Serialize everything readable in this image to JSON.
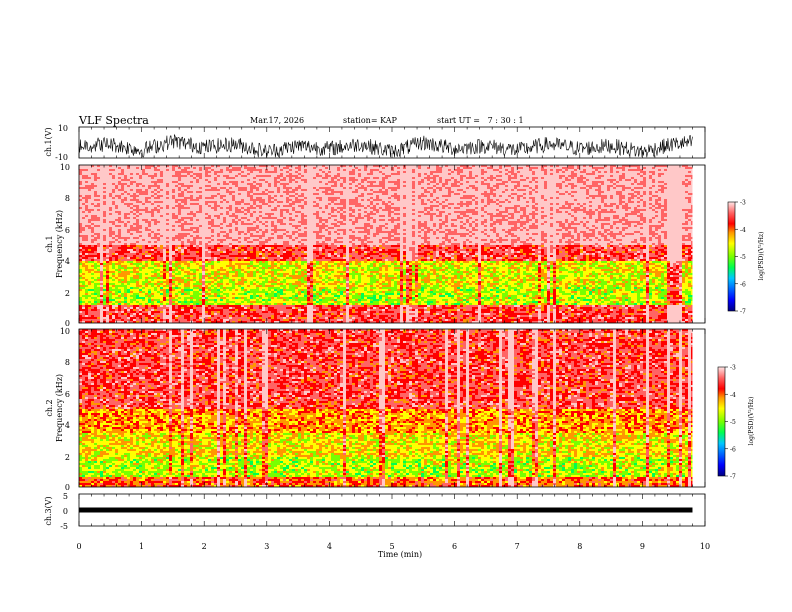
{
  "header": {
    "title": "VLF Spectra",
    "date": "Mar.17, 2026",
    "station": "station= KAP",
    "start_ut": "start UT =   7 : 30 : 1"
  },
  "colors": {
    "scale_stops": [
      "#0000b4",
      "#0000ff",
      "#00c8ff",
      "#00ff50",
      "#78ff00",
      "#ffff00",
      "#ff9600",
      "#ff0000",
      "#ff6464",
      "#ffc8c8"
    ]
  },
  "chart_data": [
    {
      "type": "line",
      "panel": "ch.1 waveform",
      "ylabel": "ch.1(V)",
      "ylim": [
        -10,
        10
      ],
      "yticks": [
        "10",
        "-10"
      ],
      "xlim": [
        0,
        10
      ],
      "x": [
        0,
        0.5,
        1,
        1.5,
        2,
        2.5,
        3,
        3.5,
        4,
        4.5,
        5,
        5.5,
        6,
        6.5,
        7,
        7.5,
        8,
        8.5,
        9,
        9.5,
        9.8
      ],
      "y": [
        -2,
        -1,
        -5,
        1,
        -3,
        -1,
        -6,
        -2,
        -4,
        -1,
        -6,
        0,
        -4,
        -2,
        -5,
        -1,
        -4,
        -2,
        -6,
        -1,
        0
      ]
    },
    {
      "type": "heatmap",
      "panel": "ch.1 spectrogram",
      "ylabel": "ch.1\nFrequency (kHz)",
      "ylim": [
        0,
        10
      ],
      "yticks": [
        "10",
        "8",
        "6",
        "4",
        "2",
        "0"
      ],
      "xlim": [
        0,
        10
      ],
      "data_end_min": 9.8,
      "colorbar": {
        "label": "log(PSD)(V²/Hz)",
        "range": [
          -7,
          -3
        ],
        "ticks": [
          "-3",
          "-4",
          "-5",
          "-6",
          "-7"
        ]
      },
      "bands": [
        {
          "f_from": 10,
          "f_to": 5,
          "log_psd": -3.3
        },
        {
          "f_from": 5,
          "f_to": 4,
          "log_psd": -3.8
        },
        {
          "f_from": 4,
          "f_to": 2.3,
          "log_psd": -4.8
        },
        {
          "f_from": 2.3,
          "f_to": 1.2,
          "log_psd": -5.0
        },
        {
          "f_from": 1.2,
          "f_to": 0,
          "log_psd": -3.8
        }
      ]
    },
    {
      "type": "heatmap",
      "panel": "ch.2 spectrogram",
      "ylabel": "ch.2\nFrequency (kHz)",
      "ylim": [
        0,
        10
      ],
      "yticks": [
        "10",
        "8",
        "6",
        "4",
        "2",
        "0"
      ],
      "xlim": [
        0,
        10
      ],
      "data_end_min": 9.8,
      "colorbar": {
        "label": "log(PSD)(V²/Hz)",
        "range": [
          -7,
          -3
        ],
        "ticks": [
          "-3",
          "-4",
          "-5",
          "-6",
          "-7"
        ]
      },
      "bands": [
        {
          "f_from": 10,
          "f_to": 5,
          "log_psd": -3.8
        },
        {
          "f_from": 5,
          "f_to": 3.5,
          "log_psd": -4.4
        },
        {
          "f_from": 3.5,
          "f_to": 2,
          "log_psd": -4.7
        },
        {
          "f_from": 2,
          "f_to": 0.7,
          "log_psd": -5.0
        },
        {
          "f_from": 0.7,
          "f_to": 0,
          "log_psd": -4.2
        }
      ]
    },
    {
      "type": "line",
      "panel": "ch.3 waveform",
      "ylabel": "ch.3(V)",
      "ylim": [
        -5,
        5
      ],
      "yticks": [
        "5",
        "0",
        "-5"
      ],
      "xlim": [
        0,
        10
      ],
      "x": [
        0,
        9.8
      ],
      "y": [
        0,
        0
      ],
      "xlabel": "Time (min)",
      "xticks": [
        "0",
        "1",
        "2",
        "3",
        "4",
        "5",
        "6",
        "7",
        "8",
        "9",
        "10"
      ]
    }
  ]
}
